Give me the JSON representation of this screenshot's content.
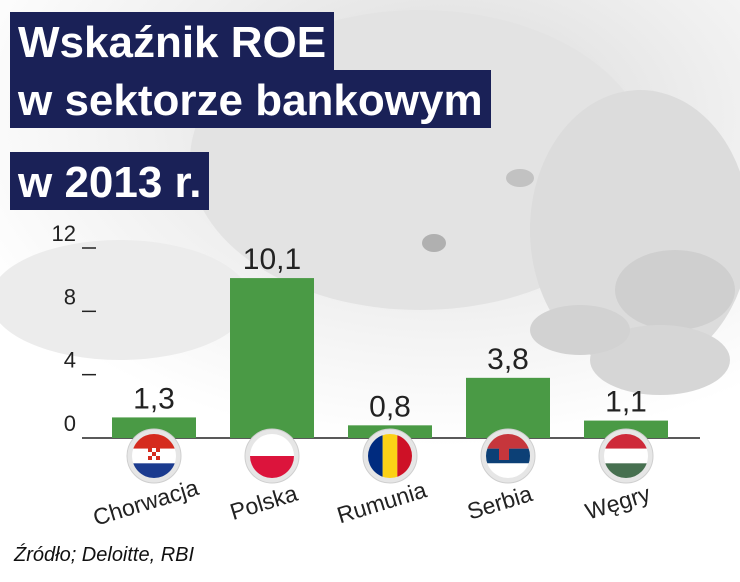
{
  "title_lines": [
    "Wskaźnik ROE",
    "w sektorze bankowym",
    "w 2013 r."
  ],
  "source": "Źródło; Deloitte, RBI",
  "colors": {
    "bar": "#4a9a45",
    "title_bg": "#1a2157",
    "axis": "#222222"
  },
  "chart_data": {
    "type": "bar",
    "title": "Wskaźnik ROE w sektorze bankowym w 2013 r.",
    "categories": [
      "Chorwacja",
      "Polska",
      "Rumunia",
      "Serbia",
      "Węgry"
    ],
    "values": [
      1.3,
      10.1,
      0.8,
      3.8,
      1.1
    ],
    "value_labels": [
      "1,3",
      "10,1",
      "0,8",
      "3,8",
      "1,1"
    ],
    "yticks": [
      0,
      4,
      8,
      12
    ],
    "ylim": [
      0,
      12
    ],
    "grid": false,
    "flags": [
      "croatia-flag-icon",
      "poland-flag-icon",
      "romania-flag-icon",
      "serbia-flag-icon",
      "hungary-flag-icon"
    ]
  }
}
